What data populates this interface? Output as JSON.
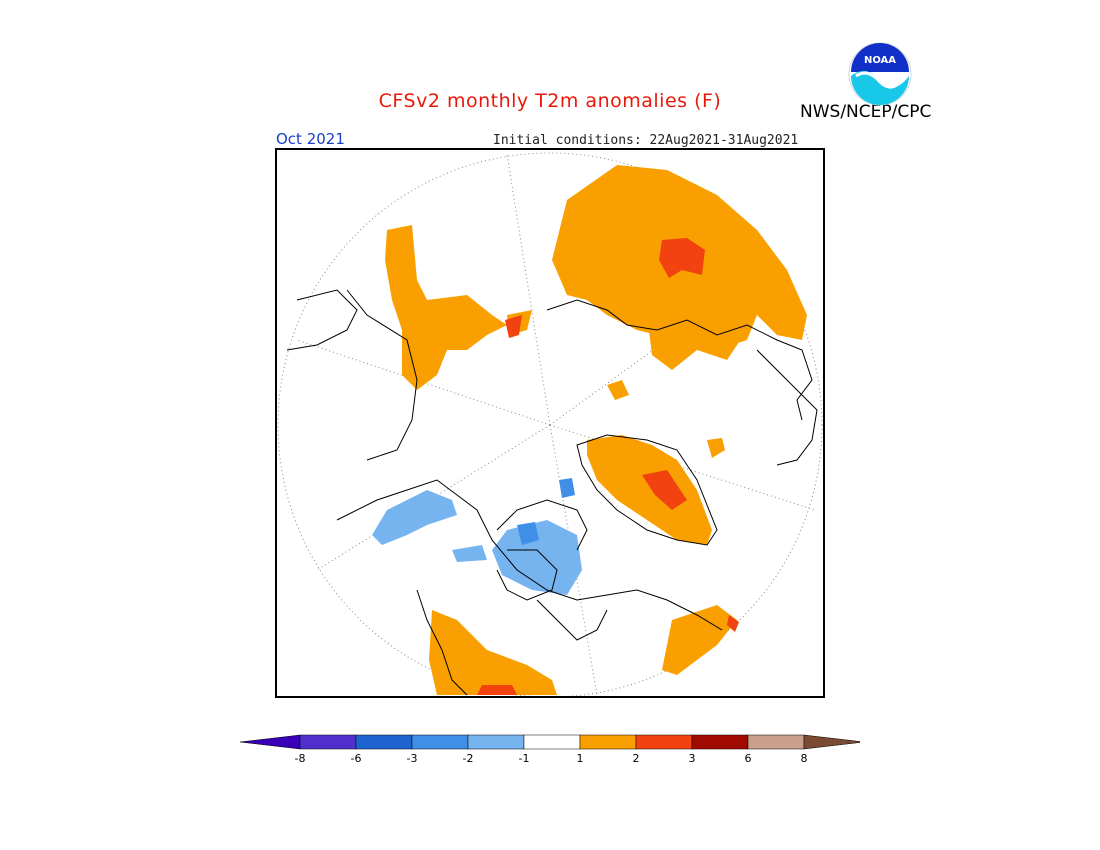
{
  "header": {
    "title": "CFSv2 monthly T2m anomalies (F)",
    "org": "NWS/NCEP/CPC",
    "month": "Oct 2021",
    "init_conditions": "Initial conditions: 22Aug2021-31Aug2021"
  },
  "logo": {
    "text": "NOAA"
  },
  "colors": {
    "title": "#e8190a",
    "month": "#1a40c8",
    "warm_1_2": "#f9a000",
    "warm_2_3": "#f2420f",
    "cool_m2_m1": "#76b4f0",
    "cool_m3_m2": "#3f8fe8"
  },
  "colorbar": {
    "bins": [
      {
        "color": "#3a00b8"
      },
      {
        "color": "#5030cc"
      },
      {
        "color": "#1e64d0"
      },
      {
        "color": "#3f8fe8"
      },
      {
        "color": "#76b4f0"
      },
      {
        "color": "#ffffff"
      },
      {
        "color": "#f9a000"
      },
      {
        "color": "#f2420f"
      },
      {
        "color": "#a00a00"
      },
      {
        "color": "#c8a08c"
      },
      {
        "color": "#7a4a32"
      }
    ],
    "ticks": [
      "-8",
      "-6",
      "-3",
      "-2",
      "-1",
      "1",
      "2",
      "3",
      "6",
      "8"
    ]
  }
}
